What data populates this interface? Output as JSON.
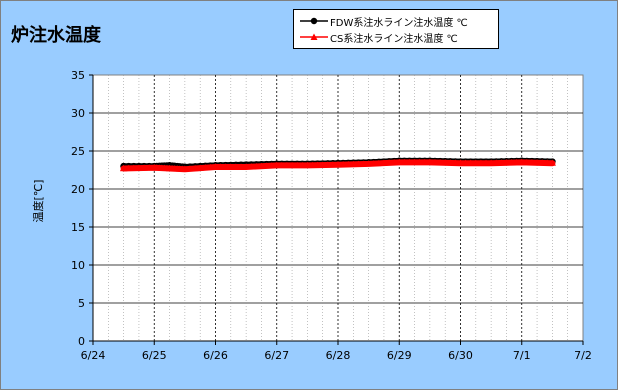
{
  "title": "炉注水温度",
  "legend": [
    {
      "label": "FDW系注水ライン注水温度 ℃",
      "color": "#000000",
      "marker": "circle"
    },
    {
      "label": "CS系注水ライン注水温度 ℃",
      "color": "#ff0000",
      "marker": "triangle"
    }
  ],
  "colors": {
    "panel_background": "#99ccff",
    "plot_background": "#ffffff",
    "fdw_series": "#000000",
    "cs_series": "#ff0000"
  },
  "chart_data": {
    "type": "line",
    "title": "炉注水温度",
    "xlabel": "",
    "ylabel": "温度[℃]",
    "grid": true,
    "legend_position": "top-right",
    "xlim": [
      "6/24",
      "7/2"
    ],
    "ylim": [
      0,
      35
    ],
    "x_ticks": [
      "6/24",
      "6/25",
      "6/26",
      "6/27",
      "6/28",
      "6/29",
      "6/30",
      "7/1",
      "7/2"
    ],
    "y_ticks": [
      0,
      5,
      10,
      15,
      20,
      25,
      30,
      35
    ],
    "series": [
      {
        "name": "FDW系注水ライン注水温度 ℃",
        "color": "#000000",
        "marker": "circle",
        "x": [
          "6/24 12:00",
          "6/25 00:00",
          "6/25 06:00",
          "6/25 12:00",
          "6/26 00:00",
          "6/26 12:00",
          "6/27 00:00",
          "6/27 12:00",
          "6/28 00:00",
          "6/28 12:00",
          "6/29 00:00",
          "6/29 12:00",
          "6/30 00:00",
          "6/30 12:00",
          "7/1 00:00",
          "7/1 12:00"
        ],
        "y": [
          23.0,
          23.0,
          23.1,
          22.9,
          23.1,
          23.2,
          23.3,
          23.3,
          23.4,
          23.5,
          23.7,
          23.7,
          23.6,
          23.6,
          23.7,
          23.6
        ]
      },
      {
        "name": "CS系注水ライン注水温度 ℃",
        "color": "#ff0000",
        "marker": "triangle",
        "x": [
          "6/24 12:00",
          "6/25 00:00",
          "6/25 06:00",
          "6/25 12:00",
          "6/26 00:00",
          "6/26 12:00",
          "6/27 00:00",
          "6/27 12:00",
          "6/28 00:00",
          "6/28 12:00",
          "6/29 00:00",
          "6/29 12:00",
          "6/30 00:00",
          "6/30 12:00",
          "7/1 00:00",
          "7/1 12:00"
        ],
        "y": [
          22.7,
          22.8,
          22.7,
          22.6,
          22.9,
          22.9,
          23.1,
          23.1,
          23.2,
          23.3,
          23.5,
          23.5,
          23.4,
          23.4,
          23.5,
          23.4
        ]
      }
    ]
  }
}
